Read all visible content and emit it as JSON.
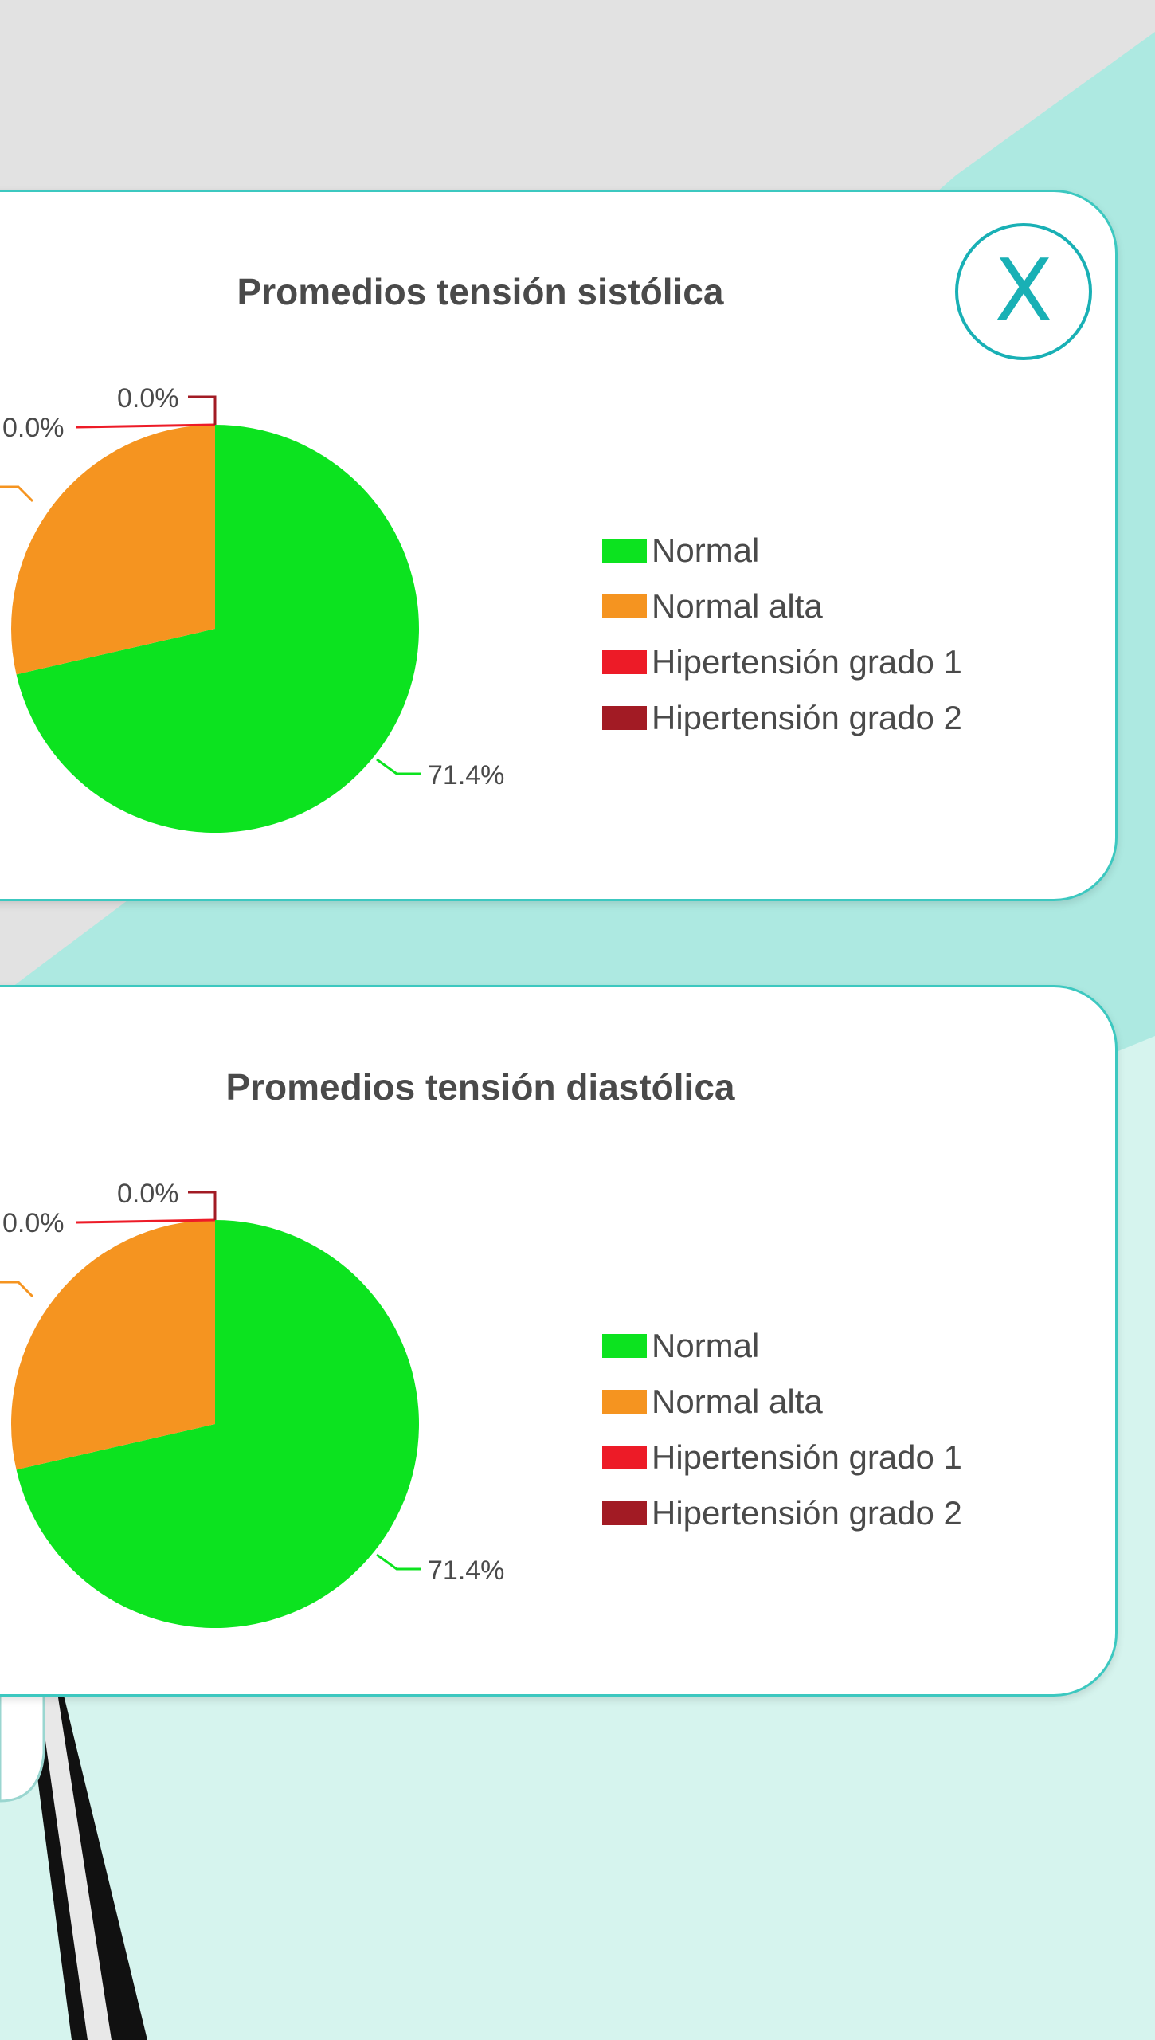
{
  "colors": {
    "normal": "#0ce31f",
    "normal_alta": "#f59420",
    "hipertension_1": "#ed1b27",
    "hipertension_2": "#a21b24",
    "card_border": "#3cc8c0",
    "accent": "#19b0b5",
    "title": "#4a4a4a"
  },
  "close_button": {
    "label": "X",
    "icon": "close-icon"
  },
  "charts": [
    {
      "id": "sistolica",
      "title": "Promedios tensión sistólica",
      "chart_data": {
        "type": "pie",
        "title": "Promedios tensión sistólica",
        "categories": [
          "Normal",
          "Normal alta",
          "Hipertensión grado 1",
          "Hipertensión grado 2"
        ],
        "values": [
          71.4,
          28.6,
          0.0,
          0.0
        ],
        "data_labels": [
          "71.4%",
          "",
          "0.0%",
          "0.0%"
        ],
        "legend": "right"
      }
    },
    {
      "id": "diastolica",
      "title": "Promedios tensión diastólica",
      "chart_data": {
        "type": "pie",
        "title": "Promedios tensión diastólica",
        "categories": [
          "Normal",
          "Normal alta",
          "Hipertensión grado 1",
          "Hipertensión grado 2"
        ],
        "values": [
          71.4,
          28.6,
          0.0,
          0.0
        ],
        "data_labels": [
          "71.4%",
          "",
          "0.0%",
          "0.0%"
        ],
        "legend": "right"
      }
    }
  ]
}
